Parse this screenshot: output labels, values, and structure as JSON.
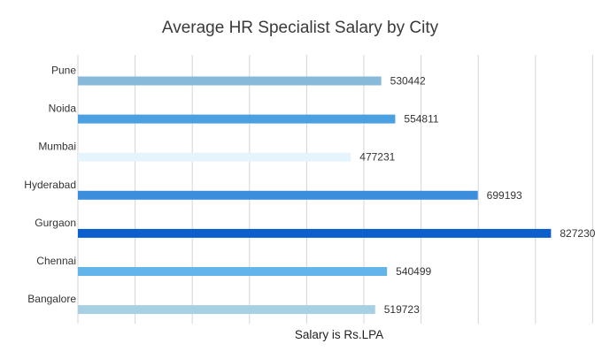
{
  "chart_data": {
    "type": "bar",
    "orientation": "horizontal",
    "title": "Average HR Specialist Salary by City",
    "xlabel": "Salary is Rs.LPA",
    "ylabel": "",
    "categories": [
      "Pune",
      "Noida",
      "Mumbai",
      "Hyderabad",
      "Gurgaon",
      "Chennai",
      "Bangalore"
    ],
    "values": [
      530442,
      554811,
      477231,
      699193,
      827230,
      540499,
      519723
    ],
    "bar_colors": [
      "#87b9d8",
      "#4aa0e0",
      "#e6f4fd",
      "#3a8edb",
      "#0a5fcc",
      "#63b4e8",
      "#a7d0e2"
    ],
    "xlim": [
      0,
      900000
    ],
    "grid": true,
    "data_labels": true,
    "legend": "none"
  }
}
